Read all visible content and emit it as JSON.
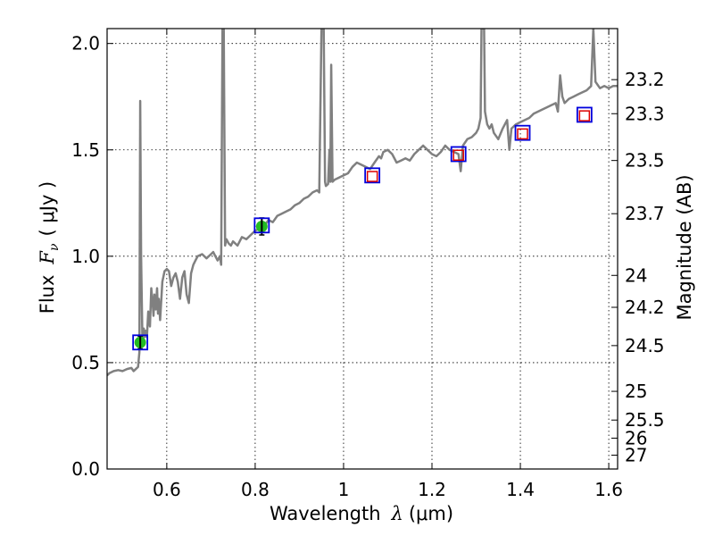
{
  "chart_data": {
    "type": "line",
    "xlabel_prefix": "Wavelength",
    "xlabel_symbol": "λ",
    "xlabel_units": "(μm)",
    "ylabel_prefix": "Flux",
    "ylabel_symbol": "F",
    "ylabel_subscript": "ν",
    "ylabel_units": "( μJy )",
    "y2label": "Magnitude (AB)",
    "xlim": [
      0.465,
      1.62
    ],
    "ylim": [
      0.0,
      2.07
    ],
    "grid": true,
    "x_ticks": [
      0.6,
      0.8,
      1.0,
      1.2,
      1.4,
      1.6
    ],
    "x_tick_labels": [
      "0.6",
      "0.8",
      "1",
      "1.2",
      "1.4",
      "1.6"
    ],
    "y_ticks": [
      0.0,
      0.5,
      1.0,
      1.5,
      2.0
    ],
    "y_tick_labels": [
      "0.0",
      "0.5",
      "1.0",
      "1.5",
      "2.0"
    ],
    "y2_ticks": [
      {
        "flux": 1.83,
        "label": "23.2"
      },
      {
        "flux": 1.67,
        "label": "23.3"
      },
      {
        "flux": 1.45,
        "label": "23.5"
      },
      {
        "flux": 1.2,
        "label": "23.7"
      },
      {
        "flux": 0.91,
        "label": "24"
      },
      {
        "flux": 0.76,
        "label": "24.2"
      },
      {
        "flux": 0.58,
        "label": "24.5"
      },
      {
        "flux": 0.365,
        "label": "25"
      },
      {
        "flux": 0.23,
        "label": "25.5"
      },
      {
        "flux": 0.145,
        "label": "26"
      },
      {
        "flux": 0.065,
        "label": "27"
      }
    ],
    "series": [
      {
        "name": "model spectrum",
        "color": "#808080",
        "points": [
          [
            0.465,
            0.44
          ],
          [
            0.47,
            0.45
          ],
          [
            0.48,
            0.46
          ],
          [
            0.49,
            0.465
          ],
          [
            0.5,
            0.46
          ],
          [
            0.51,
            0.47
          ],
          [
            0.52,
            0.475
          ],
          [
            0.525,
            0.46
          ],
          [
            0.53,
            0.47
          ],
          [
            0.535,
            0.48
          ],
          [
            0.538,
            0.55
          ],
          [
            0.54,
            1.73
          ],
          [
            0.542,
            1.0
          ],
          [
            0.545,
            0.6
          ],
          [
            0.548,
            0.66
          ],
          [
            0.55,
            0.62
          ],
          [
            0.552,
            0.65
          ],
          [
            0.555,
            0.62
          ],
          [
            0.558,
            0.74
          ],
          [
            0.56,
            0.7
          ],
          [
            0.562,
            0.67
          ],
          [
            0.565,
            0.85
          ],
          [
            0.568,
            0.78
          ],
          [
            0.57,
            0.72
          ],
          [
            0.572,
            0.82
          ],
          [
            0.575,
            0.75
          ],
          [
            0.578,
            0.85
          ],
          [
            0.58,
            0.73
          ],
          [
            0.582,
            0.8
          ],
          [
            0.585,
            0.7
          ],
          [
            0.59,
            0.88
          ],
          [
            0.595,
            0.93
          ],
          [
            0.6,
            0.94
          ],
          [
            0.605,
            0.93
          ],
          [
            0.61,
            0.86
          ],
          [
            0.615,
            0.9
          ],
          [
            0.62,
            0.92
          ],
          [
            0.625,
            0.88
          ],
          [
            0.63,
            0.8
          ],
          [
            0.635,
            0.9
          ],
          [
            0.64,
            0.93
          ],
          [
            0.645,
            0.82
          ],
          [
            0.65,
            0.78
          ],
          [
            0.655,
            0.92
          ],
          [
            0.66,
            0.96
          ],
          [
            0.665,
            0.98
          ],
          [
            0.67,
            1.0
          ],
          [
            0.68,
            1.01
          ],
          [
            0.69,
            0.99
          ],
          [
            0.7,
            1.01
          ],
          [
            0.705,
            1.02
          ],
          [
            0.71,
            1.0
          ],
          [
            0.715,
            0.98
          ],
          [
            0.72,
            1.0
          ],
          [
            0.723,
            0.96
          ],
          [
            0.726,
            2.07
          ],
          [
            0.729,
            2.07
          ],
          [
            0.732,
            1.05
          ],
          [
            0.735,
            1.08
          ],
          [
            0.74,
            1.06
          ],
          [
            0.745,
            1.05
          ],
          [
            0.75,
            1.07
          ],
          [
            0.76,
            1.05
          ],
          [
            0.77,
            1.09
          ],
          [
            0.78,
            1.08
          ],
          [
            0.79,
            1.1
          ],
          [
            0.8,
            1.12
          ],
          [
            0.81,
            1.13
          ],
          [
            0.82,
            1.14
          ],
          [
            0.83,
            1.17
          ],
          [
            0.84,
            1.16
          ],
          [
            0.85,
            1.19
          ],
          [
            0.86,
            1.2
          ],
          [
            0.87,
            1.21
          ],
          [
            0.88,
            1.22
          ],
          [
            0.89,
            1.24
          ],
          [
            0.9,
            1.25
          ],
          [
            0.91,
            1.27
          ],
          [
            0.92,
            1.28
          ],
          [
            0.93,
            1.3
          ],
          [
            0.94,
            1.31
          ],
          [
            0.945,
            1.3
          ],
          [
            0.95,
            2.07
          ],
          [
            0.955,
            2.07
          ],
          [
            0.958,
            1.35
          ],
          [
            0.96,
            1.33
          ],
          [
            0.965,
            1.34
          ],
          [
            0.968,
            1.5
          ],
          [
            0.97,
            1.35
          ],
          [
            0.972,
            1.9
          ],
          [
            0.975,
            1.35
          ],
          [
            0.98,
            1.36
          ],
          [
            0.99,
            1.37
          ],
          [
            1.0,
            1.38
          ],
          [
            1.01,
            1.39
          ],
          [
            1.02,
            1.42
          ],
          [
            1.03,
            1.44
          ],
          [
            1.04,
            1.43
          ],
          [
            1.05,
            1.42
          ],
          [
            1.06,
            1.41
          ],
          [
            1.07,
            1.44
          ],
          [
            1.08,
            1.47
          ],
          [
            1.085,
            1.46
          ],
          [
            1.09,
            1.49
          ],
          [
            1.1,
            1.5
          ],
          [
            1.11,
            1.48
          ],
          [
            1.12,
            1.44
          ],
          [
            1.13,
            1.45
          ],
          [
            1.14,
            1.46
          ],
          [
            1.15,
            1.45
          ],
          [
            1.16,
            1.48
          ],
          [
            1.17,
            1.5
          ],
          [
            1.18,
            1.52
          ],
          [
            1.19,
            1.5
          ],
          [
            1.2,
            1.48
          ],
          [
            1.21,
            1.47
          ],
          [
            1.22,
            1.49
          ],
          [
            1.23,
            1.52
          ],
          [
            1.24,
            1.5
          ],
          [
            1.25,
            1.49
          ],
          [
            1.26,
            1.48
          ],
          [
            1.265,
            1.4
          ],
          [
            1.27,
            1.52
          ],
          [
            1.28,
            1.55
          ],
          [
            1.29,
            1.56
          ],
          [
            1.3,
            1.58
          ],
          [
            1.305,
            1.6
          ],
          [
            1.31,
            1.65
          ],
          [
            1.312,
            2.07
          ],
          [
            1.318,
            2.07
          ],
          [
            1.32,
            1.68
          ],
          [
            1.325,
            1.62
          ],
          [
            1.33,
            1.6
          ],
          [
            1.335,
            1.62
          ],
          [
            1.34,
            1.58
          ],
          [
            1.35,
            1.55
          ],
          [
            1.36,
            1.6
          ],
          [
            1.37,
            1.64
          ],
          [
            1.375,
            1.5
          ],
          [
            1.38,
            1.6
          ],
          [
            1.39,
            1.62
          ],
          [
            1.4,
            1.63
          ],
          [
            1.41,
            1.64
          ],
          [
            1.42,
            1.65
          ],
          [
            1.43,
            1.67
          ],
          [
            1.44,
            1.68
          ],
          [
            1.45,
            1.69
          ],
          [
            1.46,
            1.7
          ],
          [
            1.47,
            1.71
          ],
          [
            1.48,
            1.72
          ],
          [
            1.485,
            1.68
          ],
          [
            1.49,
            1.85
          ],
          [
            1.495,
            1.75
          ],
          [
            1.5,
            1.72
          ],
          [
            1.51,
            1.74
          ],
          [
            1.52,
            1.75
          ],
          [
            1.53,
            1.76
          ],
          [
            1.54,
            1.77
          ],
          [
            1.55,
            1.78
          ],
          [
            1.56,
            1.8
          ],
          [
            1.565,
            2.07
          ],
          [
            1.57,
            1.82
          ],
          [
            1.58,
            1.79
          ],
          [
            1.59,
            1.8
          ],
          [
            1.6,
            1.79
          ],
          [
            1.61,
            1.8
          ],
          [
            1.62,
            1.8
          ]
        ]
      }
    ],
    "observed_points": [
      {
        "x": 0.54,
        "y": 0.595,
        "err": 0.03,
        "color": "#22bb22"
      },
      {
        "x": 0.815,
        "y": 1.14,
        "err": 0.04,
        "color": "#22bb22"
      }
    ],
    "model_markers": [
      {
        "x": 0.54,
        "y": 0.595
      },
      {
        "x": 0.815,
        "y": 1.145
      },
      {
        "x": 1.065,
        "y": 1.38
      },
      {
        "x": 1.26,
        "y": 1.48
      },
      {
        "x": 1.405,
        "y": 1.58
      },
      {
        "x": 1.545,
        "y": 1.665
      }
    ],
    "predicted_points": [
      {
        "x": 1.065,
        "y": 1.375
      },
      {
        "x": 1.26,
        "y": 1.475
      },
      {
        "x": 1.405,
        "y": 1.575
      },
      {
        "x": 1.545,
        "y": 1.66
      }
    ],
    "colors": {
      "spectrum": "#808080",
      "marker_blue": "#0000dd",
      "marker_red": "#dd0000",
      "observed_green": "#22bb22",
      "grid": "#000000"
    }
  }
}
